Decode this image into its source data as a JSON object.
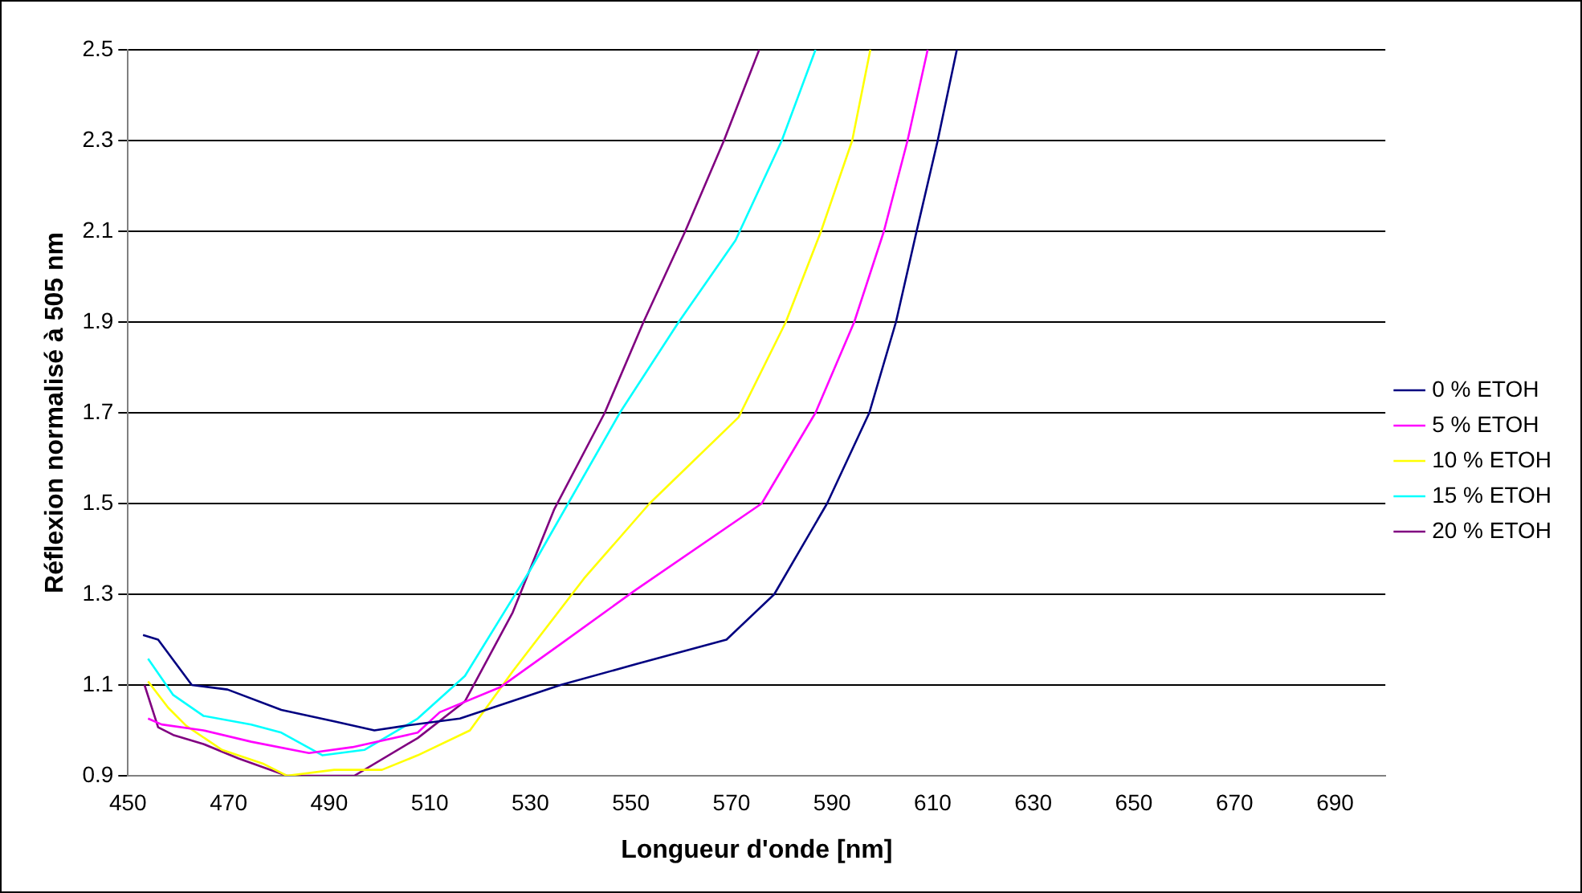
{
  "chart_data": {
    "type": "line",
    "xlabel": "Longueur d'onde [nm]",
    "ylabel": "Réflexion normalisé à 505 nm",
    "xlim": [
      450,
      700
    ],
    "xticks": [
      450,
      470,
      490,
      510,
      530,
      550,
      570,
      590,
      610,
      630,
      650,
      670,
      690
    ],
    "ylim": [
      0.9,
      2.5
    ],
    "yticks": [
      0.9,
      1.1,
      1.3,
      1.5,
      1.7,
      1.9,
      2.1,
      2.3,
      2.5
    ],
    "grid": "y",
    "legend": "right",
    "marker": "none",
    "line_style": "solid",
    "series": [
      {
        "name": "0 % ETOH",
        "color": "#000080",
        "x": [
          453,
          456,
          462.7,
          469.8,
          480.5,
          491,
          499,
          505,
          516,
          536,
          551,
          569,
          578.5,
          589,
          597.4,
          602.7,
          606.8,
          611,
          614.8
        ],
        "values": [
          1.21,
          1.2,
          1.1,
          1.09,
          1.045,
          1.02,
          1.0,
          1.01,
          1.026,
          1.1,
          1.146,
          1.2,
          1.3,
          1.5,
          1.7,
          1.9,
          2.1,
          2.3,
          2.5
        ]
      },
      {
        "name": "5 % ETOH",
        "color": "#ff00ff",
        "x": [
          454,
          456.7,
          465,
          474.5,
          486,
          494.6,
          507.6,
          512,
          524,
          536,
          551,
          576,
          586.7,
          594.4,
          600.3,
          605,
          609
        ],
        "values": [
          1.026,
          1.013,
          1.0,
          0.975,
          0.95,
          0.963,
          0.995,
          1.04,
          1.095,
          1.19,
          1.31,
          1.5,
          1.7,
          1.9,
          2.1,
          2.3,
          2.5
        ]
      },
      {
        "name": "10 % ETOH",
        "color": "#ffff00",
        "x": [
          454,
          458,
          461.6,
          468.7,
          477,
          481.6,
          491,
          500.5,
          507.6,
          518,
          526.5,
          540.7,
          553.7,
          571.4,
          580.8,
          587.8,
          594,
          597.6
        ],
        "values": [
          1.108,
          1.05,
          1.01,
          0.957,
          0.926,
          0.9,
          0.913,
          0.913,
          0.945,
          1.0,
          1.13,
          1.335,
          1.5,
          1.69,
          1.9,
          2.1,
          2.3,
          2.5
        ]
      },
      {
        "name": "15 % ETOH",
        "color": "#00ffff",
        "x": [
          454,
          459,
          465,
          474.5,
          480.5,
          488.7,
          497,
          507.6,
          517,
          530,
          547.8,
          559.5,
          570.8,
          580,
          586.7
        ],
        "values": [
          1.158,
          1.078,
          1.032,
          1.013,
          0.995,
          0.945,
          0.957,
          1.026,
          1.12,
          1.354,
          1.7,
          1.9,
          2.08,
          2.3,
          2.5
        ]
      },
      {
        "name": "20 % ETOH",
        "color": "#800080",
        "x": [
          453.3,
          456,
          459,
          465,
          472,
          481.6,
          495,
          507.6,
          517,
          526.5,
          534.7,
          544.8,
          552.5,
          560.8,
          568.5,
          575.5
        ],
        "values": [
          1.1,
          1.007,
          0.99,
          0.97,
          0.938,
          0.9,
          0.9,
          0.983,
          1.064,
          1.26,
          1.486,
          1.7,
          1.9,
          2.1,
          2.3,
          2.5
        ]
      }
    ]
  }
}
